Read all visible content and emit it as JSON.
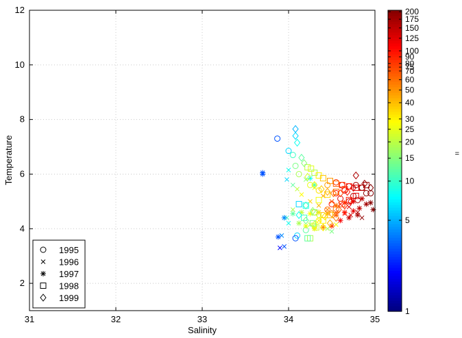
{
  "chart_data": {
    "type": "scatter",
    "xlabel": "Salinity",
    "ylabel": "Temperature",
    "xlim": [
      31,
      35
    ],
    "ylim": [
      1,
      12
    ],
    "x_ticks": [
      "31",
      "32",
      "33",
      "34",
      "35"
    ],
    "y_ticks": [
      "2",
      "4",
      "6",
      "8",
      "10",
      "12"
    ],
    "grid": true,
    "legend_position": "bottom-left",
    "legend": [
      {
        "label": "1995",
        "marker": "circle"
      },
      {
        "label": "1996",
        "marker": "x"
      },
      {
        "label": "1997",
        "marker": "star"
      },
      {
        "label": "1998",
        "marker": "square"
      },
      {
        "label": "1999",
        "marker": "diamond"
      }
    ],
    "colorbar": {
      "colormap": "jet",
      "ticks": [
        "1",
        "5",
        "10",
        "15",
        "20",
        "25",
        "30",
        "40",
        "50",
        "60",
        "70",
        "75",
        "80",
        "90",
        "100",
        "125",
        "150",
        "175",
        "200"
      ],
      "label_fragment": "="
    },
    "series": [
      {
        "name": "1995",
        "marker": "circle",
        "points": [
          [
            33.87,
            7.3,
            3
          ],
          [
            34.0,
            6.85,
            6
          ],
          [
            34.05,
            6.7,
            10
          ],
          [
            34.08,
            6.3,
            14
          ],
          [
            34.12,
            6.0,
            18
          ],
          [
            34.25,
            5.6,
            25
          ],
          [
            34.35,
            5.4,
            32
          ],
          [
            34.45,
            5.6,
            45
          ],
          [
            34.55,
            5.7,
            80
          ],
          [
            34.62,
            5.6,
            110
          ],
          [
            34.7,
            5.55,
            140
          ],
          [
            34.78,
            5.6,
            170
          ],
          [
            34.85,
            5.5,
            180
          ],
          [
            34.9,
            5.3,
            190
          ],
          [
            34.95,
            5.3,
            200
          ],
          [
            34.6,
            5.1,
            120
          ],
          [
            34.7,
            5.0,
            150
          ],
          [
            34.8,
            5.05,
            165
          ],
          [
            34.5,
            4.9,
            90
          ],
          [
            34.45,
            4.7,
            60
          ],
          [
            34.4,
            4.5,
            40
          ],
          [
            34.35,
            4.3,
            28
          ],
          [
            34.3,
            4.1,
            22
          ],
          [
            34.2,
            3.95,
            12
          ],
          [
            34.1,
            3.75,
            6
          ],
          [
            34.08,
            3.65,
            3
          ],
          [
            34.3,
            4.6,
            35
          ],
          [
            34.55,
            5.3,
            100
          ],
          [
            34.65,
            5.4,
            130
          ],
          [
            34.75,
            5.2,
            160
          ]
        ]
      },
      {
        "name": "1996",
        "marker": "x",
        "points": [
          [
            33.9,
            3.3,
            2
          ],
          [
            33.95,
            3.35,
            3
          ],
          [
            33.92,
            3.75,
            4
          ],
          [
            34.0,
            4.2,
            8
          ],
          [
            33.98,
            4.4,
            10
          ],
          [
            34.05,
            4.7,
            18
          ],
          [
            33.98,
            5.8,
            6
          ],
          [
            34.05,
            5.6,
            12
          ],
          [
            34.1,
            5.45,
            20
          ],
          [
            34.15,
            5.25,
            28
          ],
          [
            34.25,
            5.0,
            35
          ],
          [
            34.35,
            4.85,
            40
          ],
          [
            34.45,
            4.7,
            55
          ],
          [
            34.55,
            4.6,
            75
          ],
          [
            34.65,
            4.55,
            100
          ],
          [
            34.72,
            4.5,
            130
          ],
          [
            34.8,
            4.6,
            160
          ],
          [
            34.85,
            4.4,
            185
          ],
          [
            34.0,
            6.15,
            8
          ],
          [
            34.2,
            5.8,
            15
          ],
          [
            34.3,
            5.5,
            25
          ],
          [
            34.4,
            5.2,
            45
          ],
          [
            34.5,
            5.0,
            70
          ],
          [
            34.6,
            4.9,
            95
          ],
          [
            34.7,
            4.8,
            120
          ],
          [
            34.35,
            4.3,
            30
          ],
          [
            34.25,
            4.15,
            22
          ],
          [
            34.45,
            4.0,
            18
          ],
          [
            34.55,
            4.15,
            26
          ],
          [
            34.5,
            3.9,
            14
          ]
        ]
      },
      {
        "name": "1997",
        "marker": "star",
        "points": [
          [
            33.7,
            6.05,
            3
          ],
          [
            33.7,
            6.0,
            3
          ],
          [
            33.95,
            4.4,
            4
          ],
          [
            33.88,
            3.7,
            3
          ],
          [
            34.05,
            4.55,
            12
          ],
          [
            34.15,
            4.6,
            20
          ],
          [
            34.25,
            4.55,
            28
          ],
          [
            34.35,
            4.6,
            35
          ],
          [
            34.45,
            4.55,
            45
          ],
          [
            34.55,
            4.5,
            70
          ],
          [
            34.65,
            4.6,
            95
          ],
          [
            34.75,
            4.65,
            120
          ],
          [
            34.82,
            4.75,
            145
          ],
          [
            34.9,
            4.9,
            170
          ],
          [
            34.95,
            4.95,
            195
          ],
          [
            34.98,
            4.7,
            200
          ],
          [
            34.6,
            4.3,
            110
          ],
          [
            34.7,
            4.4,
            140
          ],
          [
            34.8,
            4.5,
            165
          ],
          [
            34.5,
            4.1,
            80
          ],
          [
            34.4,
            4.05,
            50
          ],
          [
            34.3,
            4.0,
            30
          ],
          [
            34.2,
            4.1,
            25
          ],
          [
            34.12,
            4.2,
            18
          ],
          [
            34.55,
            4.85,
            60
          ],
          [
            34.65,
            4.95,
            90
          ],
          [
            34.75,
            5.0,
            125
          ],
          [
            34.85,
            5.1,
            150
          ],
          [
            34.25,
            5.85,
            8
          ],
          [
            34.3,
            5.6,
            12
          ]
        ]
      },
      {
        "name": "1998",
        "marker": "square",
        "points": [
          [
            34.22,
            6.25,
            20
          ],
          [
            34.26,
            6.2,
            24
          ],
          [
            34.3,
            6.05,
            18
          ],
          [
            34.35,
            5.95,
            30
          ],
          [
            34.4,
            5.85,
            38
          ],
          [
            34.48,
            5.75,
            48
          ],
          [
            34.55,
            5.65,
            62
          ],
          [
            34.62,
            5.6,
            78
          ],
          [
            34.7,
            5.55,
            96
          ],
          [
            34.78,
            5.5,
            125
          ],
          [
            34.85,
            5.5,
            150
          ],
          [
            34.9,
            5.6,
            175
          ],
          [
            34.25,
            3.65,
            18
          ],
          [
            34.22,
            3.65,
            12
          ],
          [
            34.32,
            4.05,
            22
          ],
          [
            34.4,
            4.3,
            30
          ],
          [
            34.48,
            4.5,
            40
          ],
          [
            34.55,
            4.7,
            55
          ],
          [
            34.62,
            4.9,
            72
          ],
          [
            34.7,
            5.05,
            90
          ],
          [
            34.78,
            5.2,
            120
          ],
          [
            34.2,
            4.85,
            8
          ],
          [
            34.3,
            4.6,
            16
          ],
          [
            34.18,
            4.4,
            10
          ],
          [
            34.35,
            5.05,
            26
          ],
          [
            34.45,
            5.25,
            34
          ],
          [
            34.55,
            5.35,
            58
          ],
          [
            34.65,
            5.45,
            85
          ],
          [
            34.12,
            4.9,
            6
          ],
          [
            34.28,
            4.2,
            14
          ]
        ]
      },
      {
        "name": "1999",
        "marker": "diamond",
        "points": [
          [
            34.08,
            7.65,
            5
          ],
          [
            34.08,
            7.4,
            6
          ],
          [
            34.1,
            7.15,
            8
          ],
          [
            34.15,
            6.6,
            12
          ],
          [
            34.18,
            6.4,
            15
          ],
          [
            34.22,
            5.9,
            22
          ],
          [
            34.3,
            5.6,
            28
          ],
          [
            34.38,
            5.45,
            36
          ],
          [
            34.45,
            5.35,
            44
          ],
          [
            34.52,
            5.3,
            58
          ],
          [
            34.6,
            5.3,
            76
          ],
          [
            34.68,
            5.35,
            98
          ],
          [
            34.75,
            5.5,
            130
          ],
          [
            34.78,
            5.95,
            160
          ],
          [
            34.88,
            5.65,
            180
          ],
          [
            34.95,
            5.5,
            200
          ],
          [
            34.2,
            4.85,
            10
          ],
          [
            34.28,
            4.65,
            16
          ],
          [
            34.35,
            4.5,
            24
          ],
          [
            34.42,
            4.45,
            32
          ],
          [
            34.5,
            4.55,
            48
          ],
          [
            34.58,
            4.7,
            68
          ],
          [
            34.65,
            4.85,
            88
          ],
          [
            34.72,
            5.0,
            115
          ],
          [
            34.12,
            4.5,
            8
          ],
          [
            34.2,
            4.3,
            14
          ],
          [
            34.3,
            4.15,
            22
          ],
          [
            34.4,
            4.05,
            30
          ],
          [
            34.48,
            4.2,
            42
          ],
          [
            34.55,
            4.4,
            56
          ]
        ]
      }
    ]
  }
}
